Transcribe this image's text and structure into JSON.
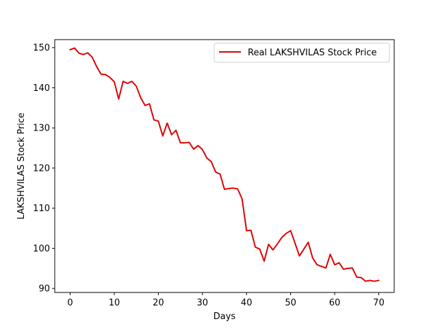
{
  "chart_data": {
    "type": "line",
    "title": "",
    "xlabel": "Days",
    "ylabel": "LAKSHVILAS Stock Price",
    "xlim": [
      -3.5,
      73.5
    ],
    "ylim": [
      89,
      152
    ],
    "xticks": [
      0,
      10,
      20,
      30,
      40,
      50,
      60,
      70
    ],
    "yticks": [
      90,
      100,
      110,
      120,
      130,
      140,
      150
    ],
    "grid": false,
    "legend_position": "top-right",
    "series": [
      {
        "name": "Real LAKSHVILAS Stock Price",
        "color": "#dd0000",
        "x": [
          0,
          1,
          2,
          3,
          4,
          5,
          6,
          7,
          8,
          9,
          10,
          11,
          12,
          13,
          14,
          15,
          16,
          17,
          18,
          19,
          20,
          21,
          22,
          23,
          24,
          25,
          26,
          27,
          28,
          29,
          30,
          31,
          32,
          33,
          34,
          35,
          36,
          37,
          38,
          39,
          40,
          41,
          42,
          43,
          44,
          45,
          46,
          47,
          48,
          49,
          50,
          51,
          52,
          53,
          54,
          55,
          56,
          57,
          58,
          59,
          60,
          61,
          62,
          63,
          64,
          65,
          66,
          67,
          68,
          69,
          70
        ],
        "values": [
          149.5,
          149.9,
          148.6,
          148.3,
          148.7,
          147.6,
          145.3,
          143.4,
          143.3,
          142.6,
          141.5,
          137.2,
          141.6,
          141.1,
          141.6,
          140.4,
          137.5,
          135.6,
          136.0,
          132.0,
          131.7,
          128.0,
          131.2,
          128.3,
          129.4,
          126.3,
          126.3,
          126.4,
          124.7,
          125.6,
          124.6,
          122.5,
          121.6,
          119.0,
          118.5,
          114.7,
          114.9,
          115.0,
          114.8,
          112.3,
          104.4,
          104.5,
          100.3,
          99.8,
          96.8,
          101.0,
          99.6,
          101.1,
          102.7,
          103.7,
          104.4,
          101.3,
          98.1,
          99.8,
          101.5,
          97.6,
          95.9,
          95.5,
          95.1,
          98.5,
          95.9,
          96.4,
          94.8,
          95.0,
          95.1,
          92.8,
          92.7,
          91.8,
          92.0,
          91.8,
          92.0
        ]
      }
    ]
  }
}
